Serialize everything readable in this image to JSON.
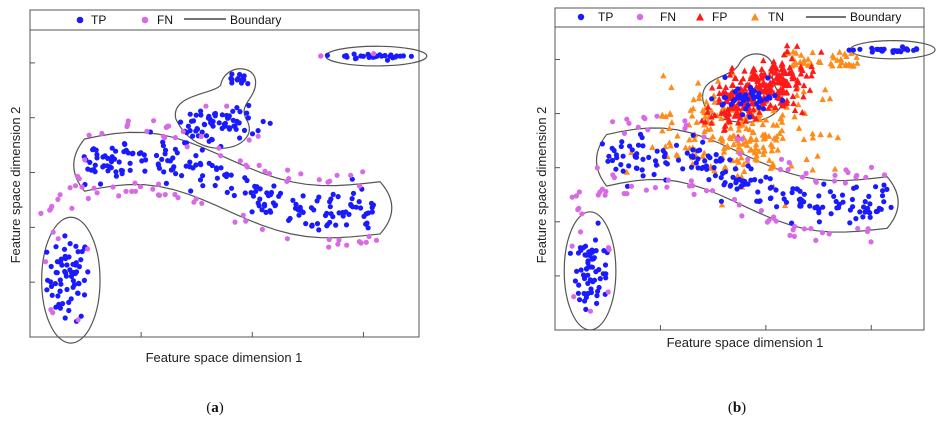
{
  "chart_data": [
    {
      "type": "scatter",
      "panel": "(a)",
      "panel_letter": "a",
      "xlabel": "Feature space dimension 1",
      "ylabel": "Feature space dimension 2",
      "xlim": [
        0,
        10
      ],
      "ylim": [
        0,
        10
      ],
      "legend": {
        "placement": "top",
        "entries": [
          "TP",
          "FN",
          "Boundary"
        ]
      },
      "clusters": [
        {
          "name": "",
          "cx": 1.0,
          "cy": 1.9,
          "sx": 0.5,
          "sy": 1.25,
          "tp": 70,
          "fn": 6
        },
        {
          "name": "",
          "cx": 4.8,
          "cy": 6.9,
          "sx": 1.0,
          "sy": 0.55,
          "tp": 65,
          "fn": 4
        },
        {
          "name": "",
          "cx": 5.4,
          "cy": 8.4,
          "sx": 0.35,
          "sy": 0.25,
          "tp": 14,
          "fn": 0
        },
        {
          "name": "",
          "cx": 8.9,
          "cy": 9.15,
          "sx": 1.1,
          "sy": 0.07,
          "tp": 28,
          "fn": 3
        },
        {
          "name": "",
          "path": "band",
          "tp": 190,
          "fn": 70
        }
      ],
      "boundaries": [
        {
          "kind": "ellipse",
          "cx": 1.05,
          "cy": 1.85,
          "rx": 0.75,
          "ry": 2.05
        },
        {
          "kind": "ellipse",
          "cx": 8.9,
          "cy": 9.15,
          "rx": 1.3,
          "ry": 0.32
        },
        {
          "kind": "path",
          "d": "blob_mid"
        },
        {
          "kind": "path",
          "d": "band"
        }
      ]
    },
    {
      "type": "scatter",
      "panel": "(b)",
      "panel_letter": "b",
      "xlabel": "Feature space dimension 1",
      "ylabel": "Feature space dimension 2",
      "xlim": [
        0,
        10
      ],
      "ylim": [
        0,
        10
      ],
      "legend": {
        "placement": "top",
        "entries": [
          "TP",
          "FN",
          "FP",
          "TN",
          "Boundary"
        ]
      },
      "clusters": [
        {
          "name": "",
          "cx": 0.95,
          "cy": 2.0,
          "sx": 0.45,
          "sy": 1.2,
          "tp": 60,
          "fn": 8
        },
        {
          "name": "",
          "cx": 5.2,
          "cy": 7.6,
          "sx": 0.85,
          "sy": 0.4,
          "tp": 45,
          "fn": 0
        },
        {
          "name": "",
          "cx": 9.2,
          "cy": 9.25,
          "sx": 0.95,
          "sy": 0.07,
          "tp": 26,
          "fn": 0
        },
        {
          "name": "",
          "path": "band",
          "tp": 180,
          "fn": 70
        }
      ],
      "fp_points": 260,
      "tn_points": 230,
      "boundaries": [
        {
          "kind": "ellipse",
          "cx": 0.95,
          "cy": 1.95,
          "rx": 0.7,
          "ry": 1.95
        },
        {
          "kind": "ellipse",
          "cx": 9.15,
          "cy": 9.25,
          "rx": 1.15,
          "ry": 0.3
        },
        {
          "kind": "path",
          "d": "blob_mid"
        },
        {
          "kind": "path",
          "d": "band"
        }
      ]
    }
  ],
  "colors": {
    "tp": "#1a1aff",
    "fn": "#d96ae6",
    "fp": "#ff1a1a",
    "tn": "#ff8c1a",
    "boundary": "#555555",
    "frame": "#555555"
  }
}
